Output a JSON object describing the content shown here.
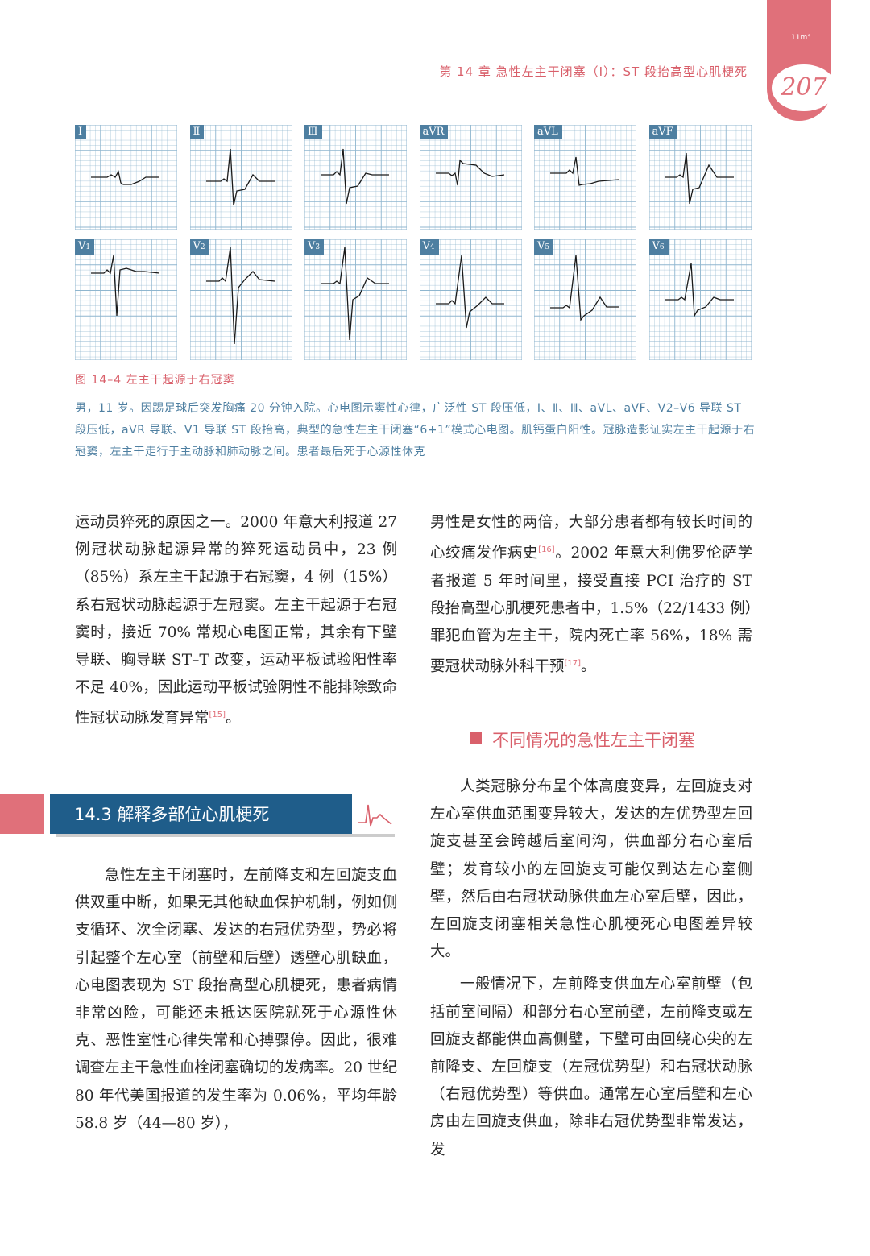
{
  "header": {
    "brand": "11m°",
    "page_number": "207",
    "running_head": "第 14 章  急性左主干闭塞（Ⅰ）：ST 段抬高型心肌梗死"
  },
  "figure": {
    "leads_row1": [
      "Ⅰ",
      "Ⅱ",
      "Ⅲ",
      "aVR",
      "aVL",
      "aVF"
    ],
    "leads_row2": [
      "V1",
      "V2",
      "V3",
      "V4",
      "V5",
      "V6"
    ],
    "title": "图 14–4  左主干起源于右冠窦",
    "caption": "男，11 岁。因踢足球后突发胸痛 20 分钟入院。心电图示窦性心律，广泛性 ST 段压低，Ⅰ、Ⅱ、Ⅲ、aVL、aVF、V2–V6 导联 ST 段压低，aVR 导联、V1 导联 ST 段抬高，典型的急性左主干闭塞“6+1”模式心电图。肌钙蛋白阳性。冠脉造影证实左主干起源于右冠窦，左主干走行于主动脉和肺动脉之间。患者最后死于心源性休克"
  },
  "left_col_top": {
    "text": "运动员猝死的原因之一。2000 年意大利报道 27 例冠状动脉起源异常的猝死运动员中，23 例（85%）系左主干起源于右冠窦，4 例（15%）系右冠状动脉起源于左冠窦。左主干起源于右冠窦时，接近 70% 常规心电图正常，其余有下壁导联、胸导联 ST–T 改变，运动平板试验阳性率不足 40%，因此运动平板试验阴性不能排除致命性冠状动脉发育异常",
    "cite": "[15]",
    "end": "。"
  },
  "right_col_top": {
    "text1": "男性是女性的两倍，大部分患者都有较长时间的心绞痛发作病史",
    "cite1": "[16]",
    "text2": "。2002 年意大利佛罗伦萨学者报道 5 年时间里，接受直接 PCI 治疗的 ST 段抬高型心肌梗死患者中，1.5%（22/1433 例）罪犯血管为左主干，院内死亡率 56%，18% 需要冠状动脉外科干预",
    "cite2": "[17]",
    "end": "。"
  },
  "section": {
    "title": "14.3  解释多部位心肌梗死",
    "body": "急性左主干闭塞时，左前降支和左回旋支血供双重中断，如果无其他缺血保护机制，例如侧支循环、次全闭塞、发达的右冠优势型，势必将引起整个左心室（前壁和后壁）透壁心肌缺血，心电图表现为 ST 段抬高型心肌梗死，患者病情非常凶险，可能还未抵达医院就死于心源性休克、恶性室性心律失常和心搏骤停。因此，很难调查左主干急性血栓闭塞确切的发病率。20 世纪 80 年代美国报道的发生率为 0.06%，平均年龄 58.8 岁（44—80 岁），"
  },
  "subsection": {
    "title": "不同情况的急性左主干闭塞",
    "para1": "人类冠脉分布呈个体高度变异，左回旋支对左心室供血范围变异较大，发达的左优势型左回旋支甚至会跨越后室间沟，供血部分右心室后壁；发育较小的左回旋支可能仅到达左心室侧壁，然后由右冠状动脉供血左心室后壁，因此，左回旋支闭塞相关急性心肌梗死心电图差异较大。",
    "para2": "一般情况下，左前降支供血左心室前壁（包括前室间隔）和部分右心室前壁，左前降支或左回旋支都能供血高侧壁，下壁可由回绕心尖的左前降支、左回旋支（左冠优势型）和右冠状动脉（右冠优势型）等供血。通常左心室后壁和左心房由左回旋支供血，除非右冠优势型非常发达，发"
  },
  "colors": {
    "accent_pink": "#e0707a",
    "section_blue": "#1f5d8a",
    "caption_blue": "#4e7fa1",
    "grid_blue": "#8fb6cf"
  }
}
